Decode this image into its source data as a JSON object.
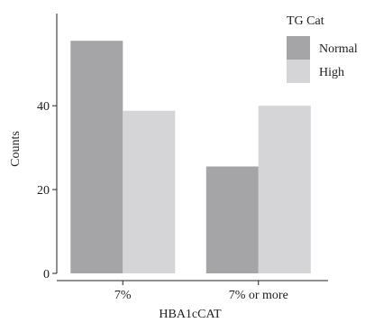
{
  "chart_data": {
    "type": "bar",
    "categories": [
      "7%",
      "7% or more"
    ],
    "series": [
      {
        "name": "Normal",
        "values": [
          55.5,
          25.5
        ],
        "color": "#a5a5a7"
      },
      {
        "name": "High",
        "values": [
          38.8,
          40.0
        ],
        "color": "#d5d5d7"
      }
    ],
    "xlabel": "HBA1cCAT",
    "ylabel": "Counts",
    "ylim": [
      0,
      62
    ],
    "yticks": [
      0,
      20,
      40
    ],
    "legend": {
      "title": "TG Cat",
      "placement": "top-right"
    },
    "grid": false
  }
}
